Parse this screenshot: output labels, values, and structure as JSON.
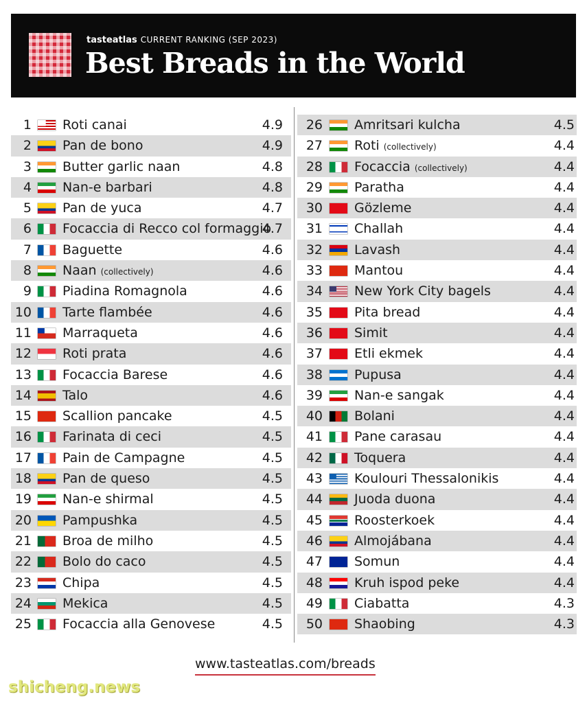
{
  "header": {
    "brand": "tasteatlas",
    "subtitle": "CURRENT RANKING (SEP 2023)",
    "title": "Best Breads in the World"
  },
  "footer": {
    "url": "www.tasteatlas.com/breads",
    "watermark": "shicheng.news"
  },
  "flags": {
    "my": "linear-gradient(#fff 0 0) 0 0/45% 57% no-repeat,repeating-linear-gradient(#cc0001 0 2px,#fff 2px 4px)",
    "co": "linear-gradient(#fcd116 50%,#003893 0 75%,#ce1126 0)",
    "in": "linear-gradient(#f93 33%,#fff 0 67%,#138808 0)",
    "ir": "linear-gradient(#239f40 33%,#fff 0 67%,#da0000 0)",
    "it": "linear-gradient(90deg,#009246 33%,#fff 0 67%,#ce2b37 0)",
    "fr": "linear-gradient(90deg,#0055a4 33%,#fff 0 67%,#ef4135 0)",
    "cl": "linear-gradient(#0039a6 0 0) 0 0/38% 50% no-repeat,linear-gradient(#fff 50%,#d52b1e 0)",
    "sg": "linear-gradient(#ef3340 50%,#fff 0)",
    "es": "linear-gradient(#aa151b 25%,#f1bf00 0 75%,#aa151b 0)",
    "cn": "#de2910",
    "ua": "linear-gradient(#0057b7 50%,#ffd700 0)",
    "pt": "linear-gradient(90deg,#046a38 40%,#da291c 0)",
    "py": "linear-gradient(#d52b1e 33%,#fff 0 67%,#0038a8 0)",
    "bg": "linear-gradient(#fff 33%,#00966e 0 67%,#d62612 0)",
    "tr": "#e30a17",
    "il": "linear-gradient(#fff 15%,#0038b8 0 27%,#fff 0 73%,#0038b8 0 85%,#fff 0)",
    "am": "linear-gradient(#d90012 33%,#0033a0 0 67%,#f2a800 0)",
    "us": "linear-gradient(#3c3b6e 0 0) 0 0/40% 54% no-repeat,repeating-linear-gradient(#b22234 0 1.15px,#fff 1.15px 2.3px)",
    "hn": "linear-gradient(#0073cf 33%,#fff 0 67%,#0073cf 0)",
    "af": "linear-gradient(90deg,#000 33%,#d32011 0 67%,#007a36 0)",
    "mx": "linear-gradient(90deg,#006847 33%,#fff 0 67%,#ce1126 0)",
    "gr": "linear-gradient(#0d5eaf 0 0) 0 0/38% 56% no-repeat,repeating-linear-gradient(#0d5eaf 0 1.67px,#fff 1.67px 3.33px)",
    "lt": "linear-gradient(#fdb913 33%,#006a44 0 67%,#c1272d 0)",
    "za": "linear-gradient(#de3831 33%,#fff 0 40%,#007a4d 0 60%,#fff 0 67%,#002395 0)",
    "ba": "linear-gradient(#002395,#002395)",
    "hr": "linear-gradient(#ff0000 33%,#fff 0 67%,#171796 0)"
  },
  "rows": [
    [
      1,
      "my",
      "Roti canai",
      "",
      "4.9"
    ],
    [
      2,
      "co",
      "Pan de bono",
      "",
      "4.9"
    ],
    [
      3,
      "in",
      "Butter garlic naan",
      "",
      "4.8"
    ],
    [
      4,
      "ir",
      "Nan-e barbari",
      "",
      "4.8"
    ],
    [
      5,
      "co",
      "Pan de yuca",
      "",
      "4.7"
    ],
    [
      6,
      "it",
      "Focaccia di Recco col formaggio",
      "",
      "4.7"
    ],
    [
      7,
      "fr",
      "Baguette",
      "",
      "4.6"
    ],
    [
      8,
      "in",
      "Naan",
      "(collectively)",
      "4.6"
    ],
    [
      9,
      "it",
      "Piadina Romagnola",
      "",
      "4.6"
    ],
    [
      10,
      "fr",
      "Tarte flambée",
      "",
      "4.6"
    ],
    [
      11,
      "cl",
      "Marraqueta",
      "",
      "4.6"
    ],
    [
      12,
      "sg",
      "Roti prata",
      "",
      "4.6"
    ],
    [
      13,
      "it",
      "Focaccia Barese",
      "",
      "4.6"
    ],
    [
      14,
      "es",
      "Talo",
      "",
      "4.6"
    ],
    [
      15,
      "cn",
      "Scallion pancake",
      "",
      "4.5"
    ],
    [
      16,
      "it",
      "Farinata di ceci",
      "",
      "4.5"
    ],
    [
      17,
      "fr",
      "Pain de Campagne",
      "",
      "4.5"
    ],
    [
      18,
      "co",
      "Pan de queso",
      "",
      "4.5"
    ],
    [
      19,
      "ir",
      "Nan-e shirmal",
      "",
      "4.5"
    ],
    [
      20,
      "ua",
      "Pampushka",
      "",
      "4.5"
    ],
    [
      21,
      "pt",
      "Broa de milho",
      "",
      "4.5"
    ],
    [
      22,
      "pt",
      "Bolo do caco",
      "",
      "4.5"
    ],
    [
      23,
      "py",
      "Chipa",
      "",
      "4.5"
    ],
    [
      24,
      "bg",
      "Mekica",
      "",
      "4.5"
    ],
    [
      25,
      "it",
      "Focaccia alla Genovese",
      "",
      "4.5"
    ],
    [
      26,
      "in",
      "Amritsari kulcha",
      "",
      "4.5"
    ],
    [
      27,
      "in",
      "Roti",
      "(collectively)",
      "4.4"
    ],
    [
      28,
      "it",
      "Focaccia",
      "(collectively)",
      "4.4"
    ],
    [
      29,
      "in",
      "Paratha",
      "",
      "4.4"
    ],
    [
      30,
      "tr",
      "Gözleme",
      "",
      "4.4"
    ],
    [
      31,
      "il",
      "Challah",
      "",
      "4.4"
    ],
    [
      32,
      "am",
      "Lavash",
      "",
      "4.4"
    ],
    [
      33,
      "cn",
      "Mantou",
      "",
      "4.4"
    ],
    [
      34,
      "us",
      "New York City bagels",
      "",
      "4.4"
    ],
    [
      35,
      "tr",
      "Pita bread",
      "",
      "4.4"
    ],
    [
      36,
      "tr",
      "Simit",
      "",
      "4.4"
    ],
    [
      37,
      "tr",
      "Etli ekmek",
      "",
      "4.4"
    ],
    [
      38,
      "hn",
      "Pupusa",
      "",
      "4.4"
    ],
    [
      39,
      "ir",
      "Nan-e sangak",
      "",
      "4.4"
    ],
    [
      40,
      "af",
      "Bolani",
      "",
      "4.4"
    ],
    [
      41,
      "it",
      "Pane carasau",
      "",
      "4.4"
    ],
    [
      42,
      "mx",
      "Toquera",
      "",
      "4.4"
    ],
    [
      43,
      "gr",
      "Koulouri Thessalonikis",
      "",
      "4.4"
    ],
    [
      44,
      "lt",
      "Juoda duona",
      "",
      "4.4"
    ],
    [
      45,
      "za",
      "Roosterkoek",
      "",
      "4.4"
    ],
    [
      46,
      "co",
      "Almojábana",
      "",
      "4.4"
    ],
    [
      47,
      "ba",
      "Somun",
      "",
      "4.4"
    ],
    [
      48,
      "hr",
      "Kruh ispod peke",
      "",
      "4.4"
    ],
    [
      49,
      "it",
      "Ciabatta",
      "",
      "4.3"
    ],
    [
      50,
      "cn",
      "Shaobing",
      "",
      "4.3"
    ]
  ]
}
